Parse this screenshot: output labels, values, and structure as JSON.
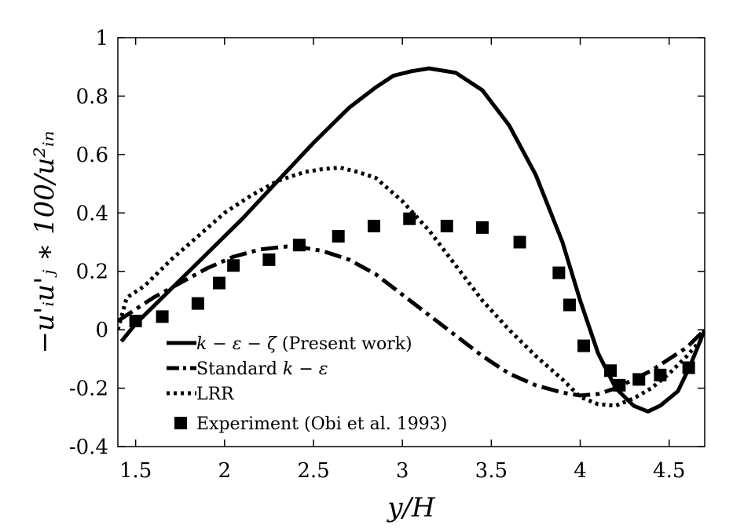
{
  "chart_data": {
    "type": "line",
    "title": "",
    "xlabel": "y/H",
    "ylabel": "−u'ᵢu'ⱼ ∗ 100/u²ᵢₙ",
    "xlim": [
      1.4,
      4.7
    ],
    "ylim": [
      -0.4,
      1.0
    ],
    "x_ticks": [
      1.5,
      2,
      2.5,
      3,
      3.5,
      4,
      4.5
    ],
    "x_tick_labels": [
      "1.5",
      "2",
      "2.5",
      "3",
      "3.5",
      "4",
      "4.5"
    ],
    "y_ticks": [
      -0.4,
      -0.2,
      0,
      0.2,
      0.4,
      0.6,
      0.8,
      1.0
    ],
    "y_tick_labels": [
      "-0.4",
      "-0.2",
      "0",
      "0.2",
      "0.4",
      "0.6",
      "0.8",
      "1"
    ],
    "grid": false,
    "legend_position": "lower-left",
    "series": [
      {
        "name": "k − ε − ζ (Present work)",
        "style": "solid",
        "color": "#000000",
        "x": [
          1.42,
          1.5,
          1.7,
          1.9,
          2.1,
          2.3,
          2.5,
          2.7,
          2.85,
          2.95,
          3.05,
          3.15,
          3.3,
          3.45,
          3.6,
          3.75,
          3.9,
          4.0,
          4.1,
          4.2,
          4.3,
          4.38,
          4.45,
          4.55,
          4.62,
          4.7
        ],
        "y": [
          -0.04,
          0.02,
          0.14,
          0.26,
          0.38,
          0.51,
          0.64,
          0.76,
          0.83,
          0.87,
          0.885,
          0.895,
          0.88,
          0.82,
          0.7,
          0.53,
          0.3,
          0.1,
          -0.08,
          -0.2,
          -0.26,
          -0.28,
          -0.26,
          -0.21,
          -0.12,
          0.0
        ]
      },
      {
        "name": "Standard k − ε",
        "style": "dashdot",
        "color": "#000000",
        "x": [
          1.4,
          1.5,
          1.6,
          1.75,
          1.9,
          2.05,
          2.2,
          2.35,
          2.45,
          2.55,
          2.7,
          2.85,
          3.0,
          3.15,
          3.3,
          3.45,
          3.6,
          3.75,
          3.9,
          4.0,
          4.1,
          4.2,
          4.3,
          4.4,
          4.5,
          4.6,
          4.7
        ],
        "y": [
          0.03,
          0.07,
          0.11,
          0.16,
          0.21,
          0.25,
          0.275,
          0.285,
          0.28,
          0.27,
          0.24,
          0.19,
          0.12,
          0.05,
          -0.02,
          -0.09,
          -0.15,
          -0.19,
          -0.215,
          -0.225,
          -0.22,
          -0.2,
          -0.17,
          -0.14,
          -0.1,
          -0.06,
          0.0
        ]
      },
      {
        "name": "LRR",
        "style": "dotted",
        "color": "#000000",
        "x": [
          1.4,
          1.45,
          1.55,
          1.7,
          1.85,
          2.0,
          2.15,
          2.3,
          2.45,
          2.55,
          2.65,
          2.75,
          2.85,
          3.0,
          3.15,
          3.3,
          3.45,
          3.6,
          3.75,
          3.9,
          4.0,
          4.1,
          4.2,
          4.3,
          4.4,
          4.5,
          4.6,
          4.7
        ],
        "y": [
          0.0,
          0.11,
          0.15,
          0.24,
          0.32,
          0.4,
          0.46,
          0.51,
          0.54,
          0.55,
          0.555,
          0.54,
          0.52,
          0.44,
          0.34,
          0.22,
          0.1,
          0.0,
          -0.09,
          -0.17,
          -0.23,
          -0.255,
          -0.26,
          -0.235,
          -0.2,
          -0.15,
          -0.09,
          -0.02
        ]
      },
      {
        "name": "Experiment (Obi et al. 1993)",
        "style": "markers",
        "marker": "square",
        "color": "#000000",
        "x": [
          1.5,
          1.65,
          1.85,
          1.97,
          2.05,
          2.25,
          2.42,
          2.64,
          2.84,
          3.04,
          3.25,
          3.45,
          3.66,
          3.88,
          3.94,
          4.02,
          4.17,
          4.22,
          4.33,
          4.45,
          4.61
        ],
        "y": [
          0.03,
          0.045,
          0.09,
          0.16,
          0.22,
          0.24,
          0.29,
          0.32,
          0.355,
          0.38,
          0.355,
          0.35,
          0.3,
          0.195,
          0.085,
          -0.055,
          -0.14,
          -0.19,
          -0.17,
          -0.155,
          -0.13
        ]
      }
    ]
  },
  "legend": {
    "items": [
      {
        "math": "k − ε − ζ",
        "text": " (Present work)"
      },
      {
        "math": "",
        "text": "Standard ",
        "math_after": "k − ε"
      },
      {
        "math": "",
        "text": "LRR"
      },
      {
        "math": "",
        "text": "Experiment (Obi et al. 1993)"
      }
    ]
  }
}
